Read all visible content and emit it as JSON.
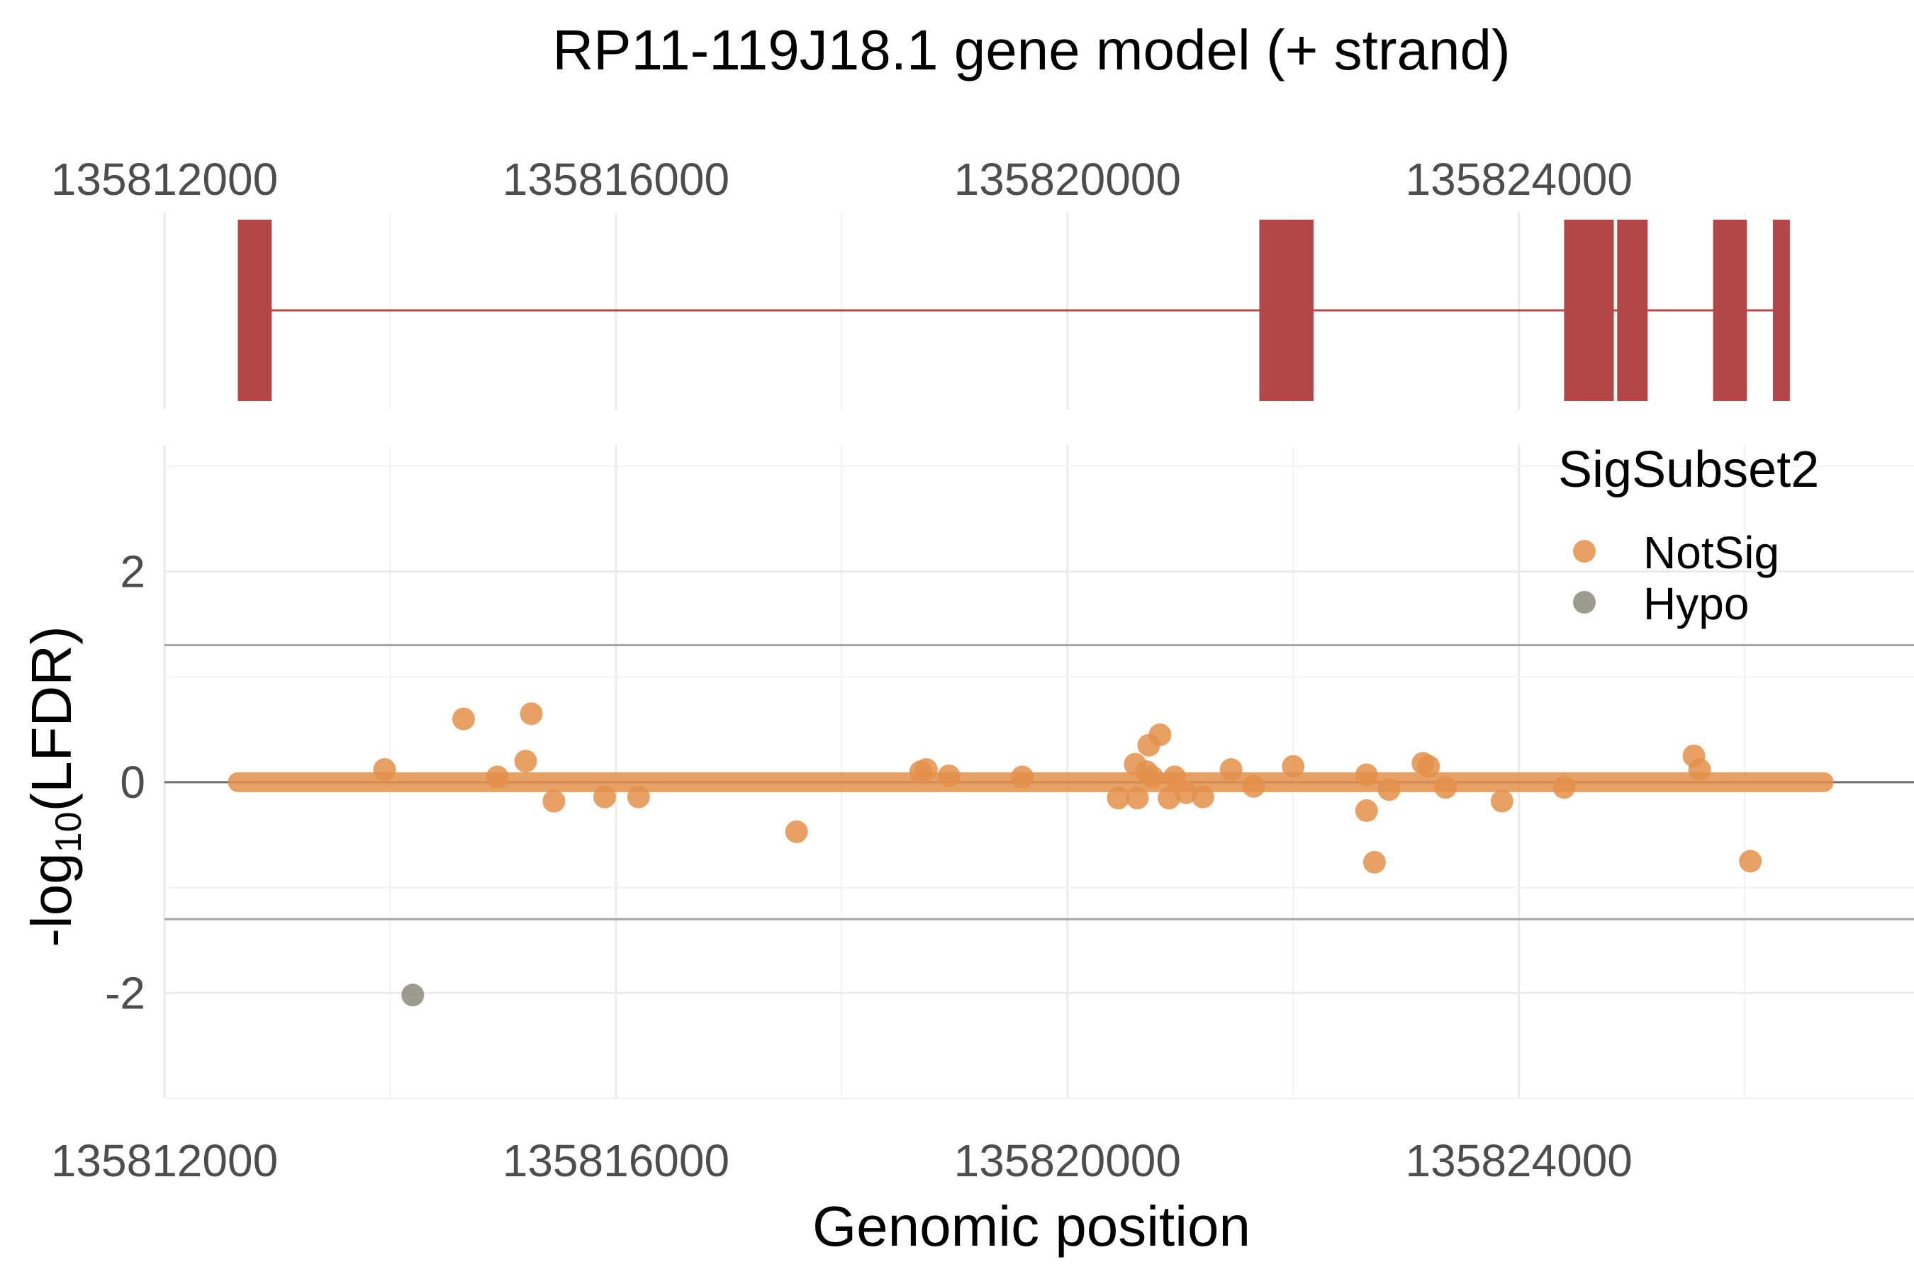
{
  "chart_data": [
    {
      "type": "gene-model",
      "title": "RP11-119J18.1 gene model (+ strand)",
      "x_ticks": [
        135812000,
        135816000,
        135820000,
        135824000
      ],
      "x_tick_labels": [
        "135812000",
        "135816000",
        "135820000",
        "135824000"
      ],
      "xlim": [
        135812000,
        135827500
      ],
      "line": [
        135812650,
        135826400
      ],
      "exons": [
        {
          "start": 135812650,
          "end": 135812950
        },
        {
          "start": 135821700,
          "end": 135822180
        },
        {
          "start": 135824400,
          "end": 135824840
        },
        {
          "start": 135824870,
          "end": 135825140
        },
        {
          "start": 135825720,
          "end": 135826020
        },
        {
          "start": 135826250,
          "end": 135826400
        }
      ],
      "colors": {
        "exon": "#b34747",
        "intron": "#b34747"
      }
    },
    {
      "type": "scatter",
      "xlabel": "Genomic position",
      "ylabel_main": "-log",
      "ylabel_sub": "10",
      "ylabel_tail": "(LFDR)",
      "y_ticks": [
        -2,
        0,
        2
      ],
      "y_tick_labels": [
        "-2",
        "0",
        "2"
      ],
      "x_ticks": [
        135812000,
        135816000,
        135820000,
        135824000
      ],
      "x_tick_labels": [
        "135812000",
        "135816000",
        "135820000",
        "135824000"
      ],
      "xlim": [
        135812000,
        135827500
      ],
      "ylim": [
        -3.0,
        3.2
      ],
      "hlines": [
        1.3,
        -1.3
      ],
      "zero_line": 0,
      "band": [
        135812650,
        135826700
      ],
      "legend": {
        "title": "SigSubset2",
        "position": "right",
        "items": [
          {
            "label": "NotSig",
            "color": "#e3904a"
          },
          {
            "label": "Hypo",
            "color": "#8a8a7b"
          }
        ]
      },
      "series": [
        {
          "name": "NotSig",
          "color": "#e3904a",
          "points": [
            [
              135813950,
              0.12
            ],
            [
              135814650,
              0.6
            ],
            [
              135814950,
              0.05
            ],
            [
              135815250,
              0.65
            ],
            [
              135815200,
              0.2
            ],
            [
              135815450,
              -0.18
            ],
            [
              135815900,
              -0.14
            ],
            [
              135816200,
              -0.14
            ],
            [
              135817600,
              -0.47
            ],
            [
              135818700,
              0.1
            ],
            [
              135818750,
              0.12
            ],
            [
              135818950,
              0.06
            ],
            [
              135819600,
              0.05
            ],
            [
              135820450,
              -0.15
            ],
            [
              135820600,
              0.17
            ],
            [
              135820620,
              -0.15
            ],
            [
              135820700,
              0.1
            ],
            [
              135820750,
              0.05
            ],
            [
              135820720,
              0.35
            ],
            [
              135820820,
              0.45
            ],
            [
              135820900,
              -0.15
            ],
            [
              135820950,
              0.05
            ],
            [
              135821050,
              -0.1
            ],
            [
              135821200,
              -0.14
            ],
            [
              135821450,
              0.12
            ],
            [
              135821650,
              -0.04
            ],
            [
              135822000,
              0.15
            ],
            [
              135822650,
              -0.27
            ],
            [
              135822650,
              0.07
            ],
            [
              135822720,
              -0.76
            ],
            [
              135822850,
              -0.07
            ],
            [
              135823150,
              0.18
            ],
            [
              135823200,
              0.15
            ],
            [
              135823350,
              -0.05
            ],
            [
              135823850,
              -0.18
            ],
            [
              135824400,
              -0.05
            ],
            [
              135825550,
              0.25
            ],
            [
              135825600,
              0.12
            ],
            [
              135826050,
              -0.75
            ]
          ]
        },
        {
          "name": "Hypo",
          "color": "#8a8a7b",
          "points": [
            [
              135814200,
              -2.02
            ]
          ]
        }
      ]
    }
  ]
}
